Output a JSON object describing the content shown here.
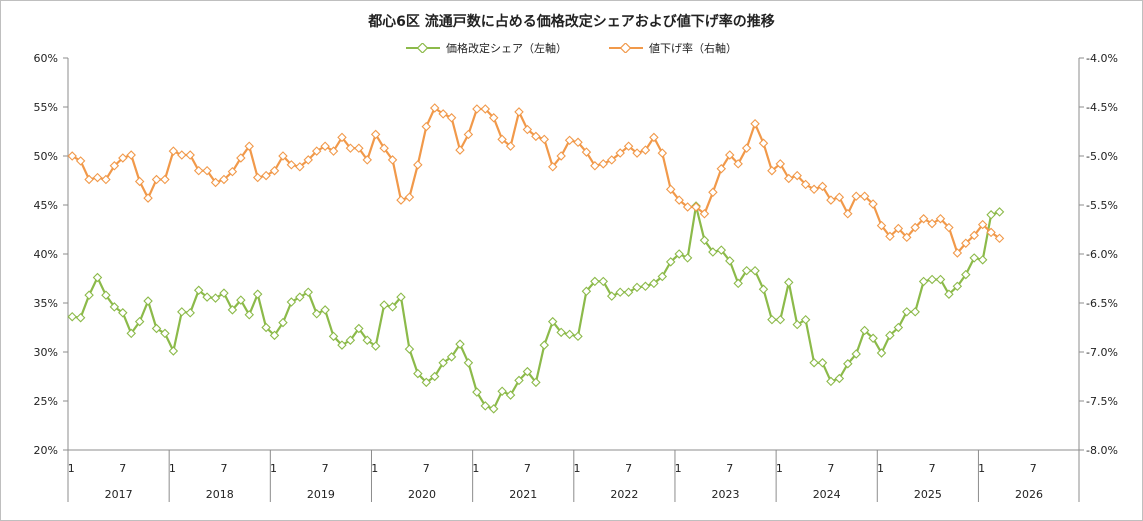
{
  "chart_data": {
    "type": "line",
    "title": "都心6区 流通戸数に占める価格改定シェアおよび値下げ率の推移",
    "series": [
      {
        "name": "価格改定シェア（左軸）",
        "axis": "left",
        "color": "#8cba4a",
        "values": [
          33.6,
          33.5,
          35.8,
          37.6,
          35.8,
          34.6,
          34.0,
          31.9,
          33.1,
          35.2,
          32.4,
          31.9,
          30.1,
          34.1,
          34.0,
          36.3,
          35.6,
          35.5,
          36.0,
          34.3,
          35.3,
          33.8,
          35.9,
          32.5,
          31.7,
          33.0,
          35.1,
          35.6,
          36.1,
          33.9,
          34.3,
          31.6,
          30.7,
          31.2,
          32.4,
          31.2,
          30.6,
          34.8,
          34.6,
          35.6,
          30.3,
          27.8,
          26.9,
          27.5,
          28.9,
          29.5,
          30.8,
          28.9,
          25.9,
          24.5,
          24.2,
          26.0,
          25.6,
          27.1,
          28.0,
          26.9,
          30.7,
          33.1,
          32.0,
          31.8,
          31.6,
          36.2,
          37.2,
          37.2,
          35.7,
          36.1,
          36.1,
          36.6,
          36.7,
          37.0,
          37.7,
          39.2,
          40.0,
          39.6,
          44.9,
          41.4,
          40.2,
          40.4,
          39.3,
          37.0,
          38.3,
          38.3,
          36.4,
          33.3,
          33.3,
          37.1,
          32.8,
          33.3,
          28.9,
          28.9,
          27.0,
          27.3,
          28.8,
          29.8,
          32.2,
          31.4,
          29.9,
          31.7,
          32.5,
          34.1,
          34.1,
          37.2,
          37.4,
          37.4,
          35.9,
          36.7,
          37.9,
          39.6,
          39.4,
          44.0,
          44.3
        ]
      },
      {
        "name": "値下げ率（右軸）",
        "axis": "right",
        "color": "#f1994a",
        "values": [
          -5.0,
          -5.05,
          -5.24,
          -5.22,
          -5.24,
          -5.1,
          -5.02,
          -4.99,
          -5.26,
          -5.43,
          -5.24,
          -5.24,
          -4.95,
          -4.99,
          -4.99,
          -5.15,
          -5.15,
          -5.27,
          -5.24,
          -5.16,
          -5.02,
          -4.9,
          -5.22,
          -5.2,
          -5.15,
          -5.0,
          -5.09,
          -5.11,
          -5.04,
          -4.95,
          -4.9,
          -4.95,
          -4.81,
          -4.92,
          -4.92,
          -5.04,
          -4.78,
          -4.92,
          -5.04,
          -5.45,
          -5.42,
          -5.09,
          -4.7,
          -4.51,
          -4.57,
          -4.61,
          -4.94,
          -4.78,
          -4.52,
          -4.52,
          -4.61,
          -4.83,
          -4.9,
          -4.55,
          -4.73,
          -4.8,
          -4.83,
          -5.11,
          -5.0,
          -4.84,
          -4.86,
          -4.96,
          -5.1,
          -5.08,
          -5.04,
          -4.97,
          -4.9,
          -4.97,
          -4.94,
          -4.81,
          -4.97,
          -5.34,
          -5.45,
          -5.52,
          -5.52,
          -5.59,
          -5.37,
          -5.13,
          -4.99,
          -5.08,
          -4.92,
          -4.67,
          -4.87,
          -5.15,
          -5.08,
          -5.23,
          -5.2,
          -5.29,
          -5.34,
          -5.31,
          -5.45,
          -5.42,
          -5.59,
          -5.41,
          -5.41,
          -5.49,
          -5.71,
          -5.82,
          -5.74,
          -5.83,
          -5.73,
          -5.64,
          -5.69,
          -5.64,
          -5.73,
          -5.99,
          -5.89,
          -5.81,
          -5.7,
          -5.78,
          -5.84
        ]
      }
    ],
    "x_start": "2017-01",
    "x_tick_labels": [
      "1",
      "7"
    ],
    "years": [
      "2017",
      "2018",
      "2019",
      "2020",
      "2021",
      "2022",
      "2023",
      "2024",
      "2025",
      "2026"
    ],
    "y_left": {
      "min": 20,
      "max": 60,
      "step": 5,
      "ticks": [
        "20%",
        "25%",
        "30%",
        "35%",
        "40%",
        "45%",
        "50%",
        "55%",
        "60%"
      ]
    },
    "y_right": {
      "min": -8.0,
      "max": -4.0,
      "step": 0.5,
      "ticks": [
        "-8.0%",
        "-7.5%",
        "-7.0%",
        "-6.5%",
        "-6.0%",
        "-5.5%",
        "-5.0%",
        "-4.5%",
        "-4.0%"
      ]
    },
    "grid": false,
    "legend_position": "top"
  }
}
